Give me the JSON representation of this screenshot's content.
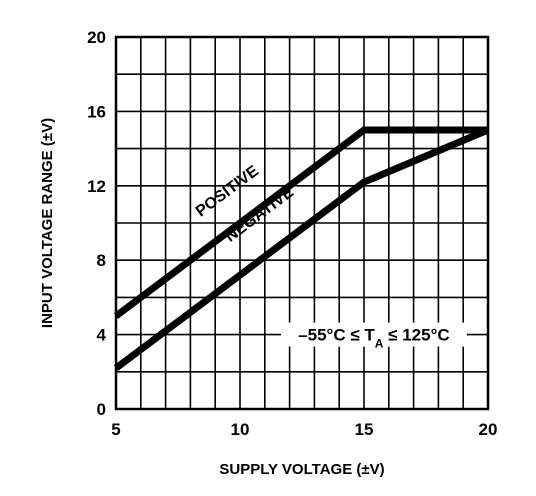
{
  "chart_data": {
    "type": "line",
    "xlabel": "SUPPLY VOLTAGE (±V)",
    "ylabel": "INPUT VOLTAGE RANGE (±V)",
    "xlim": [
      5,
      20
    ],
    "ylim": [
      0,
      20
    ],
    "x_ticks": [
      5,
      10,
      15,
      20
    ],
    "y_ticks": [
      0,
      4,
      8,
      12,
      16,
      20
    ],
    "grid": true,
    "series": [
      {
        "name": "POSITIVE",
        "x": [
          5,
          15,
          20
        ],
        "y": [
          5,
          15,
          15
        ]
      },
      {
        "name": "NEGATIVE",
        "x": [
          5,
          15,
          20
        ],
        "y": [
          2.2,
          12.2,
          15
        ]
      }
    ],
    "annotation": {
      "prefix": "–55°C ",
      "le": "≤",
      "t": " T",
      "sub": "A",
      "suffix": " ≤ 125°C"
    }
  }
}
